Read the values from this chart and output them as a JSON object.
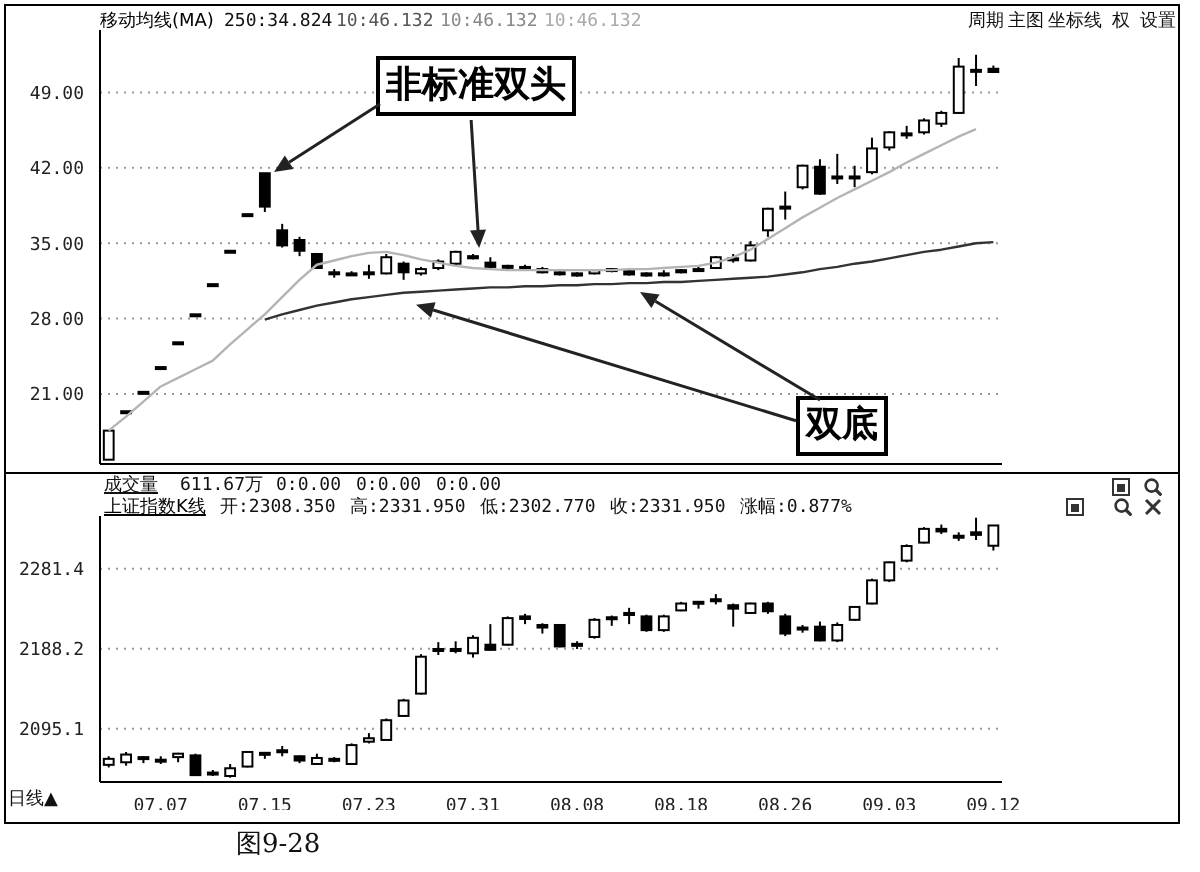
{
  "chart_data": [
    {
      "type": "candlestick",
      "title": "移动均线(MA)",
      "color": "#000000",
      "grid": "y",
      "tick_labels": "y",
      "categories": [
        null,
        null,
        null,
        "07.07",
        null,
        null,
        null,
        null,
        null,
        "07.15",
        null,
        null,
        null,
        null,
        null,
        "07.23",
        null,
        null,
        null,
        null,
        null,
        "07.31",
        null,
        null,
        null,
        null,
        null,
        "08.08",
        null,
        null,
        null,
        null,
        null,
        "08.18",
        null,
        null,
        null,
        null,
        null,
        "08.26",
        null,
        null,
        null,
        null,
        null,
        "09.03",
        null,
        null,
        null,
        null,
        null,
        "09.12"
      ],
      "ohlc": [
        [
          14.9,
          17.6,
          14.9,
          17.6
        ],
        [
          19.4,
          19.4,
          19.4,
          19.4
        ],
        [
          21.2,
          21.2,
          21.2,
          21.2
        ],
        [
          23.5,
          23.5,
          23.5,
          23.5
        ],
        [
          25.8,
          25.8,
          25.8,
          25.8
        ],
        [
          28.4,
          28.4,
          28.4,
          28.4
        ],
        [
          31.2,
          31.2,
          31.2,
          31.2
        ],
        [
          34.3,
          34.3,
          34.3,
          34.3
        ],
        [
          37.7,
          37.7,
          37.7,
          37.7
        ],
        [
          41.5,
          41.5,
          37.9,
          38.4
        ],
        [
          36.2,
          36.8,
          34.6,
          34.8
        ],
        [
          35.3,
          35.6,
          33.8,
          34.3
        ],
        [
          34.0,
          34.1,
          32.7,
          32.7
        ],
        [
          32.3,
          32.6,
          31.8,
          32.2
        ],
        [
          32.2,
          32.4,
          32.0,
          32.1
        ],
        [
          32.2,
          33.0,
          31.7,
          32.3
        ],
        [
          32.2,
          34.0,
          32.1,
          33.7
        ],
        [
          33.1,
          33.3,
          31.6,
          32.3
        ],
        [
          32.2,
          32.8,
          32.0,
          32.6
        ],
        [
          32.7,
          33.5,
          32.5,
          33.3
        ],
        [
          33.1,
          34.3,
          33.0,
          34.2
        ],
        [
          33.8,
          34.0,
          33.5,
          33.6
        ],
        [
          33.2,
          33.7,
          32.7,
          32.8
        ],
        [
          32.9,
          33.0,
          32.6,
          32.8
        ],
        [
          32.8,
          33.0,
          32.5,
          32.7
        ],
        [
          32.6,
          32.8,
          32.2,
          32.3
        ],
        [
          32.3,
          32.4,
          32.0,
          32.2
        ],
        [
          32.2,
          32.3,
          31.9,
          32.0
        ],
        [
          32.2,
          32.6,
          32.1,
          32.5
        ],
        [
          32.5,
          32.7,
          32.3,
          32.6
        ],
        [
          32.4,
          32.5,
          32.0,
          32.1
        ],
        [
          32.2,
          32.3,
          31.9,
          32.0
        ],
        [
          32.1,
          32.5,
          31.9,
          32.2
        ],
        [
          32.5,
          32.6,
          32.2,
          32.3
        ],
        [
          32.5,
          32.8,
          32.4,
          32.6
        ],
        [
          32.7,
          33.8,
          32.6,
          33.7
        ],
        [
          33.5,
          34.0,
          33.2,
          33.6
        ],
        [
          33.4,
          35.2,
          33.3,
          34.8
        ],
        [
          36.2,
          38.3,
          35.6,
          38.2
        ],
        [
          38.3,
          39.8,
          37.2,
          38.4
        ],
        [
          40.2,
          42.3,
          40.0,
          42.2
        ],
        [
          42.1,
          42.8,
          39.5,
          39.6
        ],
        [
          41.1,
          43.3,
          40.5,
          41.2
        ],
        [
          41.1,
          42.2,
          40.2,
          41.2
        ],
        [
          41.6,
          44.8,
          41.4,
          43.8
        ],
        [
          43.9,
          45.4,
          43.6,
          45.3
        ],
        [
          45.2,
          45.9,
          44.7,
          45.2
        ],
        [
          45.3,
          46.6,
          45.1,
          46.4
        ],
        [
          46.1,
          47.3,
          45.8,
          47.1
        ],
        [
          47.1,
          52.2,
          47.0,
          51.4
        ],
        [
          51.0,
          52.5,
          49.6,
          51.1
        ],
        [
          51.2,
          51.5,
          50.8,
          50.9
        ]
      ],
      "series": [
        {
          "type": "line",
          "color": "#b4b4b4",
          "values": [
            17.6,
            18.9,
            20.3,
            21.7,
            22.5,
            23.3,
            24.1,
            25.6,
            27.0,
            28.4,
            30.0,
            31.6,
            33.0,
            33.4,
            33.8,
            34.1,
            34.2,
            33.9,
            33.5,
            33.2,
            32.9,
            32.7,
            32.6,
            32.5,
            32.5,
            32.5,
            32.5,
            32.5,
            32.5,
            32.5,
            32.6,
            32.6,
            32.7,
            32.8,
            32.9,
            33.2,
            33.7,
            34.4,
            35.4,
            36.4,
            37.4,
            38.3,
            39.2,
            40.0,
            40.8,
            41.6,
            42.5,
            43.3,
            44.1,
            44.9,
            45.6,
            null
          ]
        },
        {
          "type": "line",
          "color": "#333333",
          "values": [
            null,
            null,
            null,
            null,
            null,
            null,
            null,
            null,
            null,
            27.9,
            28.4,
            28.8,
            29.2,
            29.5,
            29.8,
            30.0,
            30.2,
            30.4,
            30.5,
            30.6,
            30.7,
            30.8,
            30.9,
            30.9,
            31.0,
            31.0,
            31.1,
            31.1,
            31.2,
            31.2,
            31.3,
            31.3,
            31.4,
            31.4,
            31.5,
            31.6,
            31.7,
            31.8,
            31.9,
            32.1,
            32.3,
            32.6,
            32.8,
            33.1,
            33.3,
            33.6,
            33.9,
            34.2,
            34.4,
            34.7,
            35.0,
            35.1
          ]
        }
      ],
      "ylim": [
        14.5,
        54.8
      ],
      "yticks": [
        {
          "value": 49,
          "label": "49.00"
        },
        {
          "value": 42,
          "label": "42.00"
        },
        {
          "value": 35,
          "label": "35.00"
        },
        {
          "value": 28,
          "label": "28.00"
        },
        {
          "value": 21,
          "label": "21.00"
        }
      ],
      "annotations": [
        "250:34.824",
        "10:46.132",
        "10:46.132",
        "10:46.132",
        "周期",
        "主图",
        "坐标线",
        "权",
        "设置",
        "非标准双头",
        "双底"
      ]
    },
    {
      "type": "candlestick",
      "title": "上证指数K线",
      "color": "#000000",
      "grid": "y",
      "categories": [
        null,
        null,
        null,
        "07.07",
        null,
        null,
        null,
        null,
        null,
        "07.15",
        null,
        null,
        null,
        null,
        null,
        "07.23",
        null,
        null,
        null,
        null,
        null,
        "07.31",
        null,
        null,
        null,
        null,
        null,
        "08.08",
        null,
        null,
        null,
        null,
        null,
        "08.18",
        null,
        null,
        null,
        null,
        null,
        "08.26",
        null,
        null,
        null,
        null,
        null,
        "09.03",
        null,
        null,
        null,
        null,
        null,
        "09.12"
      ],
      "ohlc": [
        [
          2053,
          2063,
          2050,
          2060
        ],
        [
          2056,
          2068,
          2052,
          2065
        ],
        [
          2062,
          2063,
          2055,
          2060
        ],
        [
          2058,
          2063,
          2054,
          2059
        ],
        [
          2062,
          2067,
          2056,
          2066
        ],
        [
          2064,
          2066,
          2040,
          2041
        ],
        [
          2043,
          2047,
          2040,
          2044
        ],
        [
          2040,
          2054,
          2038,
          2049
        ],
        [
          2051,
          2069,
          2050,
          2068
        ],
        [
          2067,
          2068,
          2060,
          2066
        ],
        [
          2069,
          2075,
          2063,
          2070
        ],
        [
          2063,
          2064,
          2055,
          2058
        ],
        [
          2054,
          2066,
          2053,
          2061
        ],
        [
          2058,
          2062,
          2056,
          2060
        ],
        [
          2054,
          2078,
          2053,
          2076
        ],
        [
          2080,
          2090,
          2078,
          2084
        ],
        [
          2082,
          2107,
          2081,
          2105
        ],
        [
          2110,
          2130,
          2109,
          2128
        ],
        [
          2136,
          2182,
          2135,
          2179
        ],
        [
          2186,
          2196,
          2181,
          2188
        ],
        [
          2187,
          2197,
          2183,
          2188
        ],
        [
          2183,
          2204,
          2178,
          2201
        ],
        [
          2193,
          2217,
          2186,
          2187
        ],
        [
          2193,
          2226,
          2192,
          2224
        ],
        [
          2226,
          2229,
          2217,
          2223
        ],
        [
          2216,
          2218,
          2206,
          2213
        ],
        [
          2216,
          2217,
          2190,
          2191
        ],
        [
          2192,
          2197,
          2188,
          2194
        ],
        [
          2202,
          2224,
          2200,
          2222
        ],
        [
          2225,
          2227,
          2215,
          2223
        ],
        [
          2228,
          2236,
          2217,
          2230
        ],
        [
          2226,
          2228,
          2208,
          2210
        ],
        [
          2210,
          2228,
          2208,
          2226
        ],
        [
          2233,
          2243,
          2232,
          2241
        ],
        [
          2243,
          2244,
          2235,
          2241
        ],
        [
          2244,
          2252,
          2240,
          2246
        ],
        [
          2239,
          2241,
          2214,
          2235
        ],
        [
          2230,
          2242,
          2229,
          2241
        ],
        [
          2241,
          2243,
          2229,
          2232
        ],
        [
          2226,
          2229,
          2203,
          2206
        ],
        [
          2211,
          2216,
          2207,
          2213
        ],
        [
          2214,
          2220,
          2197,
          2198
        ],
        [
          2198,
          2219,
          2196,
          2216
        ],
        [
          2222,
          2238,
          2221,
          2237
        ],
        [
          2241,
          2270,
          2240,
          2268
        ],
        [
          2268,
          2290,
          2266,
          2289
        ],
        [
          2291,
          2310,
          2289,
          2308
        ],
        [
          2312,
          2330,
          2311,
          2328
        ],
        [
          2328,
          2333,
          2322,
          2325
        ],
        [
          2318,
          2324,
          2314,
          2320
        ],
        [
          2324,
          2341,
          2315,
          2321
        ],
        [
          2308.35,
          2331.95,
          2302.77,
          2331.95
        ]
      ],
      "ylim": [
        2033,
        2343
      ],
      "yticks": [
        2281.4,
        2188.2,
        2095.1
      ],
      "annotations": [
        "成交量",
        "611.67万",
        "0:0.00",
        "0:0.00",
        "0:0.00",
        "开:2308.350",
        "高:2331.950",
        "低:2302.770",
        "收:2331.950",
        "涨幅:0.877%",
        "日线▲",
        "图9-28"
      ]
    }
  ]
}
